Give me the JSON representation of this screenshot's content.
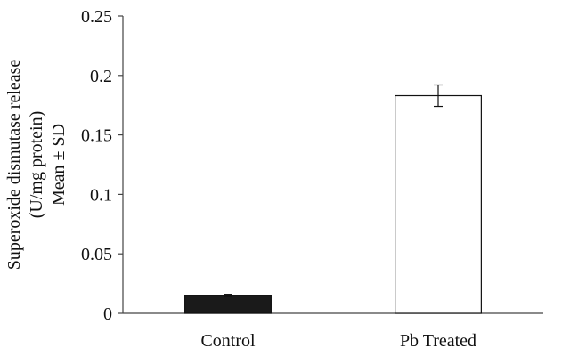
{
  "chart_data": {
    "type": "bar",
    "categories": [
      "Control",
      "Pb Treated"
    ],
    "values": [
      0.015,
      0.183
    ],
    "errors": [
      0.001,
      0.009
    ],
    "bar_colors": [
      "#1a1a1a",
      "#ffffff"
    ],
    "bar_stroke": "#111111",
    "ylabel_lines": [
      "Superoxide dismutase release",
      "(U/mg protein)",
      "Mean ± SD"
    ],
    "ylim": [
      0,
      0.25
    ],
    "yticks": [
      0,
      0.05,
      0.1,
      0.15,
      0.2,
      0.25
    ],
    "ytick_labels": [
      "0",
      "0.05",
      "0.1",
      "0.15",
      "0.2",
      "0.25"
    ],
    "grid": false,
    "legend": "none"
  }
}
